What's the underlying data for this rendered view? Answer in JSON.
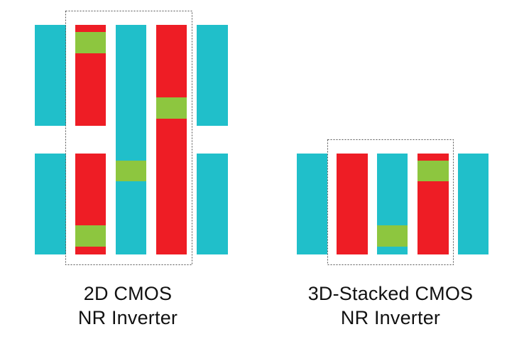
{
  "colors": {
    "cyan": "#20bfca",
    "red": "#ee1d25",
    "green": "#8dc63f",
    "outline": "#555555"
  },
  "left_diagram": {
    "caption_line1": "2D CMOS",
    "caption_line2": "NR Inverter"
  },
  "right_diagram": {
    "caption_line1": "3D-Stacked CMOS",
    "caption_line2": "NR Inverter"
  }
}
